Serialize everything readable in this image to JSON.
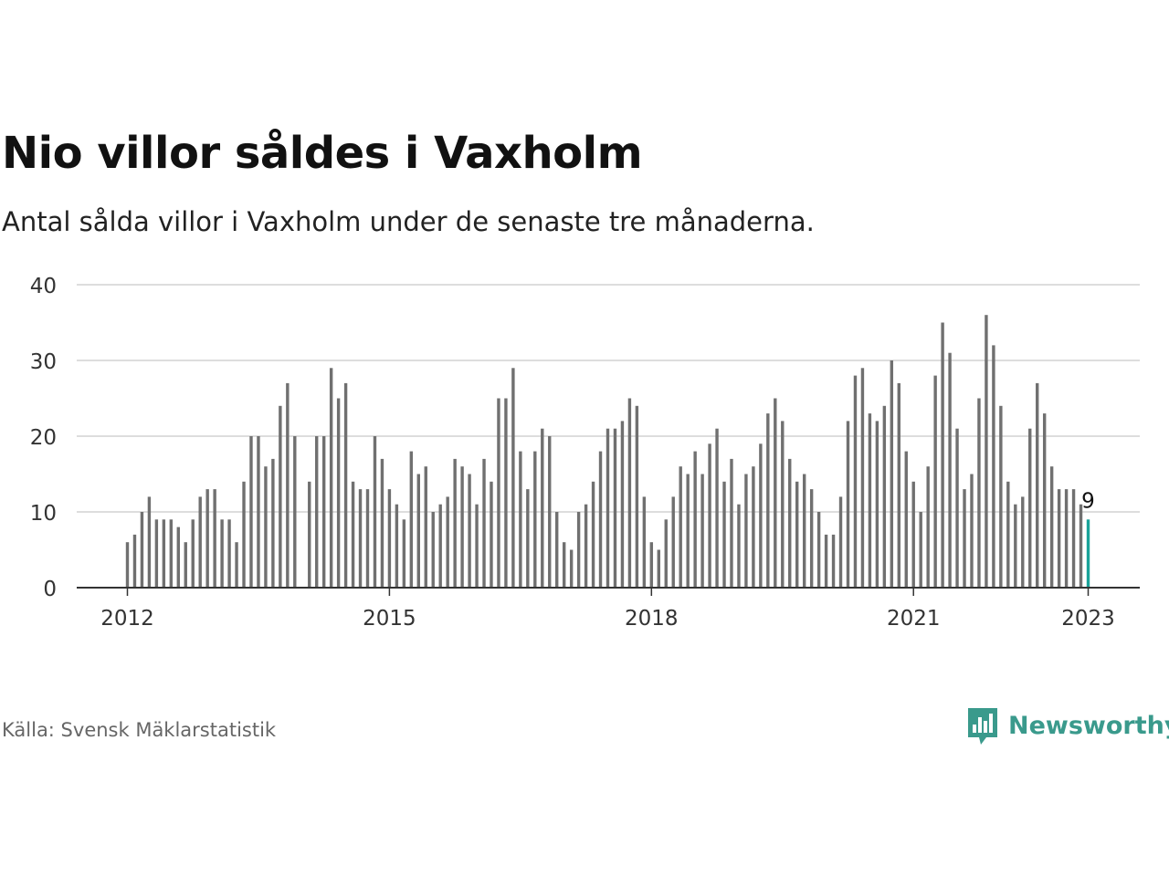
{
  "title": "Nio villor såldes i Vaxholm",
  "subtitle": "Antal sålda villor i Vaxholm under de senaste tre månaderna.",
  "source": "Källa: Svensk Mäklarstatistik",
  "brand": {
    "name": "Newsworthy",
    "color": "#3a9a8c",
    "icon": "bar-chart-speech-bubble-icon"
  },
  "colors": {
    "bar": "#707070",
    "highlight": "#1aa39a",
    "grid": "#dddddd",
    "axis": "#333333"
  },
  "chart_data": {
    "type": "bar",
    "x_start": "2012-01",
    "x_end": "2023-01",
    "ylim": [
      0,
      40
    ],
    "yticks": [
      0,
      10,
      20,
      30,
      40
    ],
    "xticks": [
      "2012",
      "2015",
      "2018",
      "2021",
      "2023"
    ],
    "grid": true,
    "values": [
      6,
      7,
      10,
      12,
      9,
      9,
      9,
      8,
      6,
      9,
      12,
      13,
      13,
      9,
      9,
      6,
      14,
      20,
      20,
      16,
      17,
      24,
      27,
      20,
      null,
      14,
      20,
      20,
      29,
      25,
      27,
      14,
      13,
      13,
      20,
      17,
      13,
      11,
      9,
      18,
      15,
      16,
      10,
      11,
      12,
      17,
      16,
      15,
      11,
      17,
      14,
      25,
      25,
      29,
      18,
      13,
      18,
      21,
      20,
      10,
      6,
      5,
      10,
      11,
      14,
      18,
      21,
      21,
      22,
      25,
      24,
      12,
      6,
      5,
      9,
      12,
      16,
      15,
      18,
      15,
      19,
      21,
      14,
      17,
      11,
      15,
      16,
      19,
      23,
      25,
      22,
      17,
      14,
      15,
      13,
      10,
      7,
      7,
      12,
      22,
      28,
      29,
      23,
      22,
      24,
      30,
      27,
      18,
      14,
      10,
      16,
      28,
      35,
      31,
      21,
      13,
      15,
      25,
      36,
      32,
      24,
      14,
      11,
      12,
      21,
      27,
      23,
      16,
      13,
      13,
      13,
      11,
      9
    ],
    "highlight_last": true,
    "last_label": "9"
  }
}
